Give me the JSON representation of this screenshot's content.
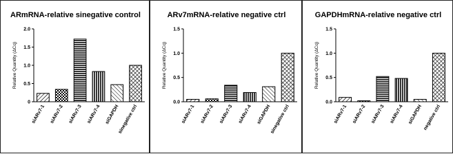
{
  "chart_data": [
    {
      "type": "bar",
      "title": "ARmRNA-relative sinegative control",
      "y_label": "Relative Quantity (ΔCq)",
      "categories": [
        "siARv7-1",
        "siARv7-2",
        "siARv7-3",
        "siARv7-4",
        "siGAPDH",
        "sinegative ctrl"
      ],
      "values": [
        0.23,
        0.34,
        1.72,
        0.83,
        0.47,
        1.0
      ],
      "ylim": [
        0,
        2.0
      ],
      "yticks": [
        0,
        0.5,
        {
          "value": 1.0,
          "label": "1.0"
        },
        1.5,
        {
          "value": 2.0,
          "label": "2.0"
        }
      ]
    },
    {
      "type": "bar",
      "title": "ARv7mRNA-relative negative ctrl",
      "y_label": "Relative Quantity (ΔCq)",
      "categories": [
        "siARv7-1",
        "siARv7-2",
        "siARv7-3",
        "siARv7-4",
        "siGAPDH",
        "sinegative ctrl"
      ],
      "values": [
        0.05,
        0.06,
        0.34,
        0.19,
        0.31,
        1.0
      ],
      "ylim": [
        0,
        1.5
      ],
      "yticks": [
        {
          "value": 0,
          "label": "0.0"
        },
        0.5,
        {
          "value": 1.0,
          "label": "1.0"
        },
        1.5
      ]
    },
    {
      "type": "bar",
      "title": "GAPDHmRNA-relative negative ctrl",
      "y_label": "Relative Quantity (ΔCq)",
      "categories": [
        "siARv7-1",
        "siARv7-2",
        "siARv7-3",
        "siARv7-4",
        "siGAPDH",
        "negative ctrl"
      ],
      "values": [
        0.09,
        0.02,
        0.52,
        0.48,
        0.05,
        1.0
      ],
      "ylim": [
        0,
        1.5
      ],
      "yticks": [
        {
          "value": 0,
          "label": "0.0"
        },
        0.5,
        {
          "value": 1.0,
          "label": "1.0"
        },
        1.5
      ]
    }
  ]
}
